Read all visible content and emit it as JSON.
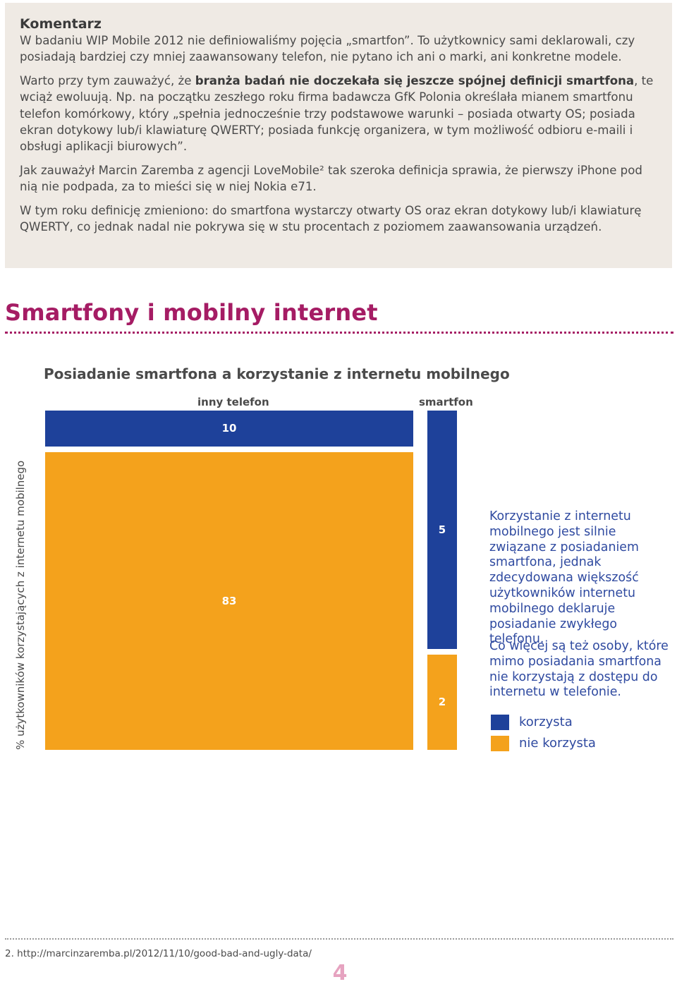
{
  "comment": {
    "title": "Komentarz",
    "p1": "W badaniu WIP Mobile 2012 nie definiowaliśmy pojęcia „smartfon”. To użytkownicy sami deklarowali, czy posiadają bardziej czy mniej zaawansowany telefon, nie pytano ich ani o marki, ani konkretne modele.",
    "p2_pre": "Warto przy tym zauważyć, że ",
    "p2_bold": "branża badań nie doczekała się jeszcze spójnej definicji smartfona",
    "p2_post": ", te wciąż ewoluują. Np. na początku zeszłego roku firma badawcza GfK Polonia określała mianem smartfonu telefon komórkowy, który „spełnia jednocześnie trzy podstawowe warunki – posiada otwarty OS; posiada ekran dotykowy lub/i klawiaturę QWERTY; posiada funkcję organizera, w tym możliwość odbioru e-maili i obsługi aplikacji biurowych”.",
    "p3": "Jak zauważył Marcin Zaremba z agencji LoveMobile² tak szeroka definicja sprawia, że pierwszy iPhone pod nią nie podpada, za to mieści się w niej Nokia e71.",
    "p4": "W tym roku definicję zmieniono: do smartfona wystarczy otwarty OS oraz ekran dotykowy lub/i klawiaturę QWERTY, co jednak nadal nie pokrywa się w stu procentach z poziomem zaawansowania urządzeń."
  },
  "section_title": "Smartfony i mobilny internet",
  "chart_data": {
    "type": "bar",
    "title": "Posiadanie smartfona a korzystanie z internetu mobilnego",
    "ylabel": "% użytkowników korzystających z internetu mobilnego",
    "categories": [
      "inny telefon",
      "smartfon"
    ],
    "series": [
      {
        "name": "korzysta",
        "values": [
          10,
          5
        ]
      },
      {
        "name": "nie korzysta",
        "values": [
          83,
          2
        ]
      }
    ],
    "colors": {
      "korzysta": "#1e419a",
      "nie korzysta": "#f4a21c"
    }
  },
  "side_text": {
    "p1": "Korzystanie z internetu mobilnego jest silnie związane z posiadaniem smartfona, jednak zdecydowana większość użytkowników internetu mobilnego deklaruje posiadanie zwykłego telefonu.",
    "p2": "Co więcej są też osoby, które mimo posiadania smartfona nie korzystają z dostępu do internetu w telefonie."
  },
  "legend": {
    "korzysta": "korzysta",
    "nie_korzysta": "nie korzysta"
  },
  "footnote": "2. http://marcinzaremba.pl/2012/11/10/good-bad-and-ugly-data/",
  "page_number": "4"
}
